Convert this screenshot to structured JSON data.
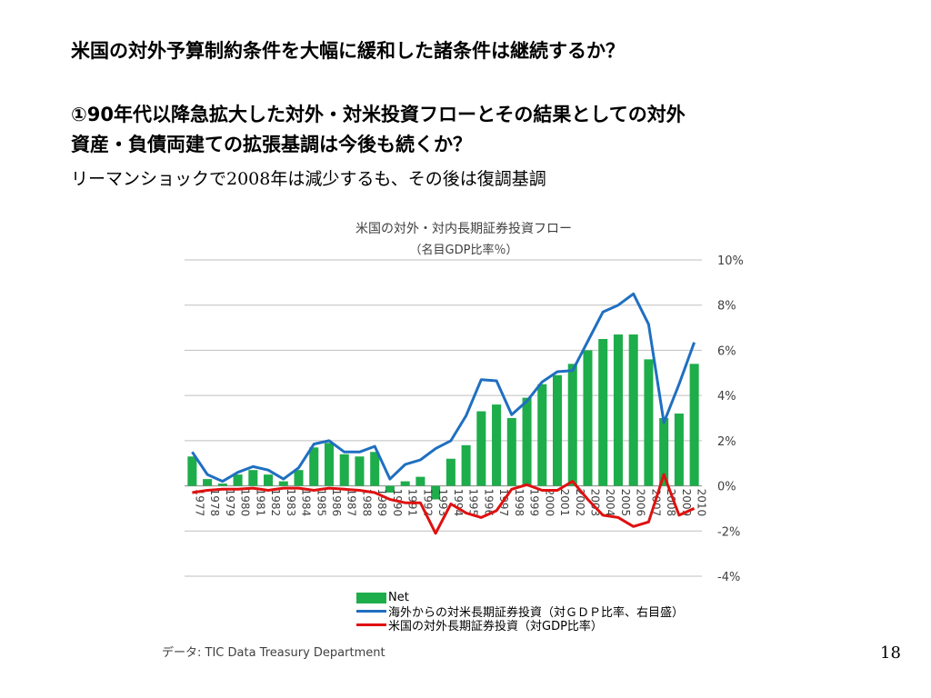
{
  "slide": {
    "title": "米国の対外予算制約条件を大幅に緩和した諸条件は継続するか？",
    "heading_line1": "①90年代以降急拡大した対外・対米投資フローとその結果としての対外",
    "heading_line2": "資産・負債両建ての拡張基調は今後も続くか？",
    "subline": "リーマンショックで2008年は減少するも、その後は復調基調",
    "source": "データ: TIC  Data Treasury Department",
    "page_number": "18"
  },
  "chart_data": {
    "type": "bar",
    "title": "米国の対外・対内長期証券投資フロー",
    "subtitle": "（名目GDP比率％）",
    "categories": [
      "1977",
      "1978",
      "1979",
      "1980",
      "1981",
      "1982",
      "1983",
      "1984",
      "1985",
      "1986",
      "1987",
      "1988",
      "1989",
      "1990",
      "1991",
      "1992",
      "1993",
      "1994",
      "1995",
      "1996",
      "1997",
      "1998",
      "1999",
      "2000",
      "2001",
      "2002",
      "2003",
      "2004",
      "2005",
      "2006",
      "2007",
      "2008",
      "2009",
      "2010"
    ],
    "y_tick_labels": [
      "10%",
      "8%",
      "6%",
      "4%",
      "2%",
      "0%",
      "-2%",
      "-4%"
    ],
    "y_ticks": [
      10,
      8,
      6,
      4,
      2,
      0,
      -2,
      -4
    ],
    "ylim": [
      -4,
      10
    ],
    "y_axis_side": "right",
    "grid": true,
    "legend_position": "bottom",
    "series": [
      {
        "name": "Net",
        "type": "bar",
        "color": "#1ead4b",
        "values": [
          1.3,
          0.3,
          0.1,
          0.5,
          0.7,
          0.5,
          0.2,
          0.7,
          1.7,
          1.9,
          1.4,
          1.3,
          1.5,
          -0.3,
          0.2,
          0.4,
          -0.6,
          1.2,
          1.8,
          3.3,
          3.6,
          3.0,
          3.9,
          4.5,
          4.9,
          5.4,
          6.0,
          6.5,
          6.7,
          6.7,
          5.6,
          3.0,
          3.2,
          5.4
        ]
      },
      {
        "name": "海外からの対米長期証券投資（対ＧＤＰ比率、右目盛）",
        "type": "line",
        "color": "#1f6fc0",
        "values": [
          1.5,
          0.5,
          0.2,
          0.6,
          0.85,
          0.7,
          0.3,
          0.8,
          1.85,
          2.0,
          1.5,
          1.5,
          1.75,
          0.3,
          0.95,
          1.15,
          1.65,
          2.0,
          3.1,
          4.7,
          4.65,
          3.15,
          3.75,
          4.6,
          5.05,
          5.1,
          6.4,
          7.7,
          8.0,
          8.5,
          7.15,
          2.8,
          4.5,
          6.35
        ]
      },
      {
        "name": "米国の対外長期証券投資（対GDP比率）",
        "type": "line",
        "color": "#e01010",
        "values": [
          -0.3,
          -0.2,
          -0.15,
          -0.15,
          -0.1,
          -0.2,
          -0.1,
          -0.1,
          -0.2,
          -0.1,
          -0.15,
          -0.2,
          -0.3,
          -0.6,
          -0.75,
          -0.75,
          -2.1,
          -0.8,
          -1.2,
          -1.4,
          -1.1,
          -0.15,
          0.05,
          -0.2,
          -0.2,
          0.2,
          -0.6,
          -1.3,
          -1.4,
          -1.8,
          -1.6,
          0.5,
          -1.3,
          -1.0
        ]
      }
    ]
  }
}
